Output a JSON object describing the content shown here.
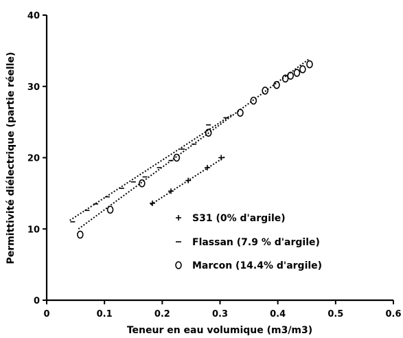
{
  "chart_data": {
    "type": "scatter",
    "title": "",
    "xlabel": "Teneur en eau volumique (m3/m3)",
    "ylabel": "Permittivité diélectrique (partie réelle)",
    "xlim": [
      0,
      0.6
    ],
    "ylim": [
      0,
      40
    ],
    "x_ticks": [
      "0",
      "0.1",
      "0.2",
      "0.3",
      "0.4",
      "0.5",
      "0.6"
    ],
    "y_ticks": [
      "0",
      "10",
      "20",
      "30",
      "40"
    ],
    "grid": false,
    "legend_position": "lower-right",
    "series": [
      {
        "name": "S31 (0% d'argile)",
        "marker": "plus",
        "x": [
          0.183,
          0.215,
          0.245,
          0.278,
          0.302
        ],
        "y": [
          13.6,
          15.3,
          16.8,
          18.6,
          20.0
        ],
        "trendline": {
          "x": [
            0.18,
            0.31
          ],
          "y": [
            13.4,
            20.2
          ]
        }
      },
      {
        "name": "Flassan (7.9 % d'argile)",
        "marker": "dash",
        "x": [
          0.045,
          0.07,
          0.085,
          0.105,
          0.13,
          0.15,
          0.17,
          0.195,
          0.215,
          0.235,
          0.255,
          0.28,
          0.31
        ],
        "y": [
          11.0,
          12.6,
          13.5,
          14.5,
          15.7,
          16.6,
          17.3,
          18.6,
          19.6,
          21.2,
          21.9,
          24.6,
          25.6
        ],
        "trendline": {
          "x": [
            0.04,
            0.32
          ],
          "y": [
            11.2,
            26.0
          ]
        }
      },
      {
        "name": "Marcon (14.4% d'argile)",
        "marker": "circle",
        "x": [
          0.058,
          0.11,
          0.165,
          0.225,
          0.28,
          0.335,
          0.358,
          0.378,
          0.398,
          0.413,
          0.422,
          0.433,
          0.443,
          0.455
        ],
        "y": [
          9.2,
          12.7,
          16.4,
          20.0,
          23.5,
          26.3,
          28.0,
          29.4,
          30.2,
          31.1,
          31.5,
          31.9,
          32.4,
          33.1
        ],
        "trendline": {
          "x": [
            0.055,
            0.455
          ],
          "y": [
            10.0,
            33.9
          ]
        }
      }
    ]
  }
}
